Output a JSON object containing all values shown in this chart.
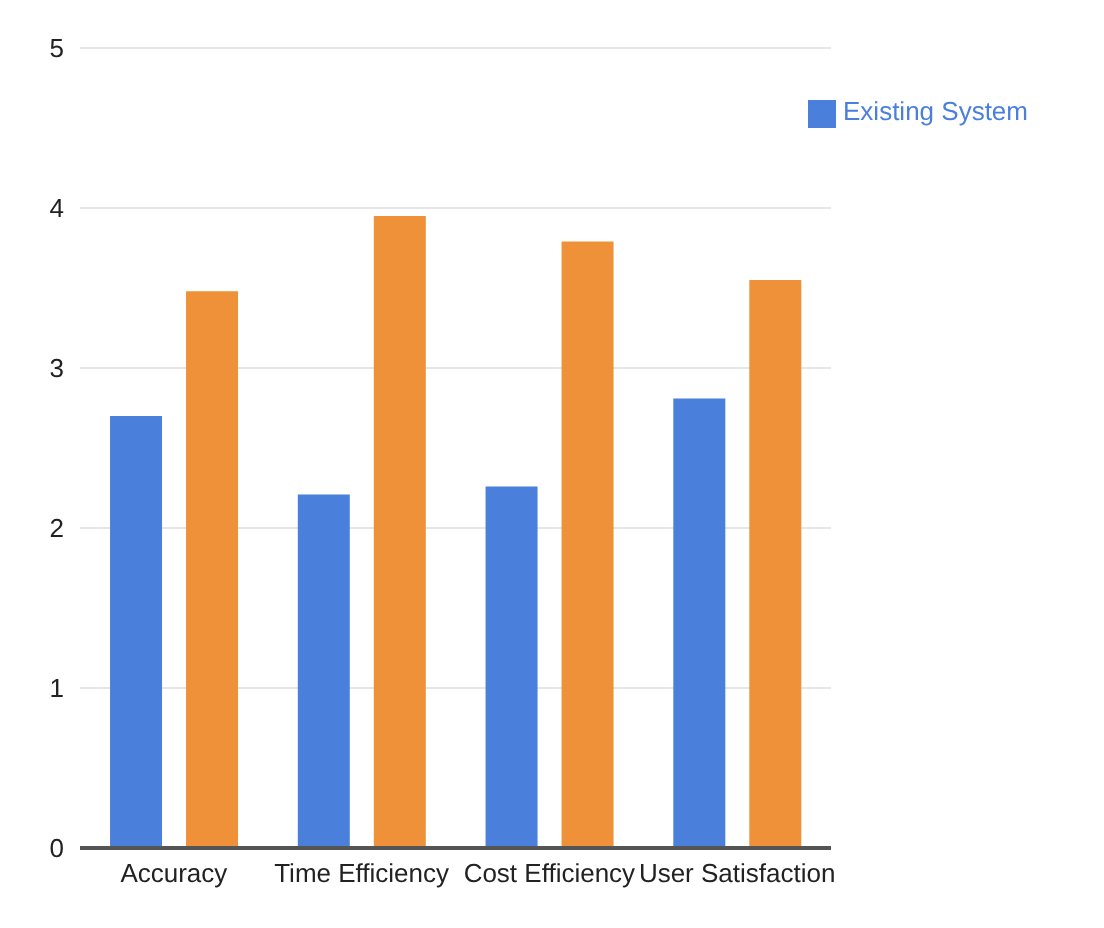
{
  "chart_data": {
    "type": "bar",
    "categories": [
      "Accuracy",
      "Time Efficiency",
      "Cost Efficiency",
      "User Satisfaction"
    ],
    "series": [
      {
        "name": "Existing System",
        "color": "#4a7fdc",
        "values": [
          2.7,
          2.21,
          2.26,
          2.81
        ]
      },
      {
        "color": "#ee9139",
        "values": [
          3.48,
          3.95,
          3.79,
          3.55
        ]
      }
    ],
    "ylim": [
      0,
      5
    ],
    "yticks": [
      0,
      1,
      2,
      3,
      4,
      5
    ],
    "grid": "y",
    "legend": "top right"
  }
}
